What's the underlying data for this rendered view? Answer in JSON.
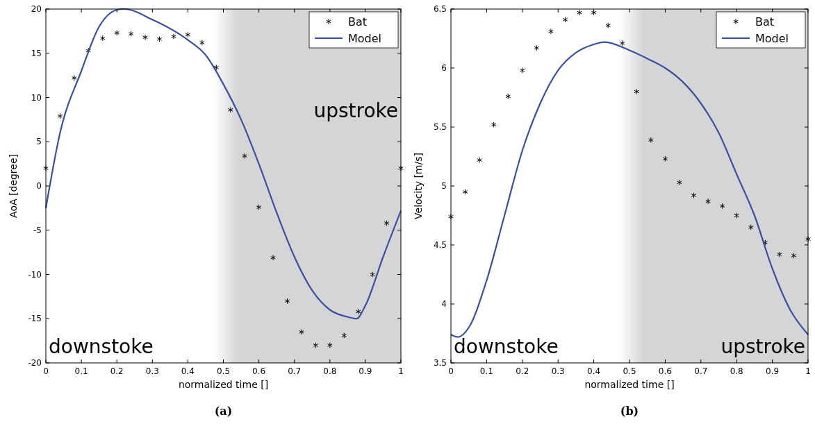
{
  "chart_data": [
    {
      "type": "line",
      "xlabel": "normalized time []",
      "ylabel": "AoA [degree]",
      "xlim": [
        0,
        1
      ],
      "ylim": [
        -20,
        20
      ],
      "xticks": [
        0,
        0.1,
        0.2,
        0.3,
        0.4,
        0.5,
        0.6,
        0.7,
        0.8,
        0.9,
        1
      ],
      "yticks": [
        -20,
        -15,
        -10,
        -5,
        0,
        5,
        10,
        15,
        20
      ],
      "grid": false,
      "legend": "top right",
      "bands": [
        {
          "axis": "x",
          "from": 0.47,
          "to": 1,
          "color": "#d4d6d6"
        }
      ],
      "annotations": [
        "downstoke",
        "upstroke",
        "(a)"
      ],
      "series": [
        {
          "name": "Bat",
          "type": "scatter",
          "marker": "cross",
          "color": "#000000",
          "x": [
            0,
            0.04,
            0.08,
            0.12,
            0.16,
            0.2,
            0.24,
            0.28,
            0.32,
            0.36,
            0.4,
            0.44,
            0.48,
            0.52,
            0.56,
            0.6,
            0.64,
            0.68,
            0.72,
            0.76,
            0.8,
            0.84,
            0.88,
            0.92,
            0.96,
            1
          ],
          "values": [
            2,
            7.9,
            12.2,
            15.3,
            16.7,
            17.3,
            17.2,
            16.8,
            16.6,
            16.9,
            17.1,
            16.2,
            13.4,
            8.6,
            3.4,
            -2.4,
            -8.1,
            -13,
            -16.5,
            -18,
            -18,
            -16.9,
            -14.2,
            -10,
            -4.2,
            2
          ]
        },
        {
          "name": "Model",
          "type": "line",
          "line_style": "solid",
          "color": "#3a4fa3",
          "x": [
            0,
            0.04,
            0.1,
            0.15,
            0.2,
            0.22,
            0.3,
            0.4,
            0.45,
            0.5,
            0.55,
            0.6,
            0.65,
            0.7,
            0.75,
            0.8,
            0.85,
            0.875,
            0.9,
            0.95,
            1
          ],
          "values": [
            -2.5,
            6,
            13,
            18,
            19.9,
            20,
            18.8,
            16.5,
            14.8,
            11.5,
            7.5,
            2.5,
            -3,
            -8,
            -11.8,
            -14,
            -14.8,
            -15,
            -13.5,
            -8,
            -2.8
          ]
        }
      ]
    },
    {
      "type": "line",
      "xlabel": "normalized time []",
      "ylabel": "Velocity [m/s]",
      "xlim": [
        0,
        1
      ],
      "ylim": [
        3.5,
        6.5
      ],
      "xticks": [
        0,
        0.1,
        0.2,
        0.3,
        0.4,
        0.5,
        0.6,
        0.7,
        0.8,
        0.9,
        1
      ],
      "yticks": [
        3.5,
        4,
        4.5,
        5,
        5.5,
        6,
        6.5
      ],
      "grid": false,
      "legend": "top right",
      "bands": [
        {
          "axis": "x",
          "from": 0.47,
          "to": 1,
          "color": "#d4d6d6"
        }
      ],
      "annotations": [
        "downstoke",
        "upstroke",
        "(b)"
      ],
      "series": [
        {
          "name": "Bat",
          "type": "scatter",
          "marker": "cross",
          "color": "#000000",
          "x": [
            0,
            0.04,
            0.08,
            0.12,
            0.16,
            0.2,
            0.24,
            0.28,
            0.32,
            0.36,
            0.4,
            0.44,
            0.48,
            0.52,
            0.56,
            0.6,
            0.64,
            0.68,
            0.72,
            0.76,
            0.8,
            0.84,
            0.88,
            0.92,
            0.96,
            1
          ],
          "values": [
            4.74,
            4.95,
            5.22,
            5.52,
            5.76,
            5.98,
            6.17,
            6.31,
            6.41,
            6.47,
            6.47,
            6.36,
            6.21,
            5.8,
            5.39,
            5.23,
            5.03,
            4.92,
            4.87,
            4.83,
            4.75,
            4.65,
            4.52,
            4.42,
            4.41,
            4.55
          ]
        },
        {
          "name": "Model",
          "type": "line",
          "line_style": "solid",
          "color": "#3a4fa3",
          "x": [
            0,
            0.02,
            0.05,
            0.1,
            0.15,
            0.2,
            0.25,
            0.3,
            0.35,
            0.4,
            0.43,
            0.5,
            0.55,
            0.6,
            0.65,
            0.7,
            0.75,
            0.8,
            0.85,
            0.9,
            0.95,
            1
          ],
          "values": [
            3.74,
            3.72,
            3.8,
            4.2,
            4.75,
            5.3,
            5.7,
            5.98,
            6.13,
            6.2,
            6.22,
            6.15,
            6.08,
            6,
            5.88,
            5.7,
            5.45,
            5.1,
            4.75,
            4.3,
            3.95,
            3.74
          ]
        }
      ]
    }
  ]
}
